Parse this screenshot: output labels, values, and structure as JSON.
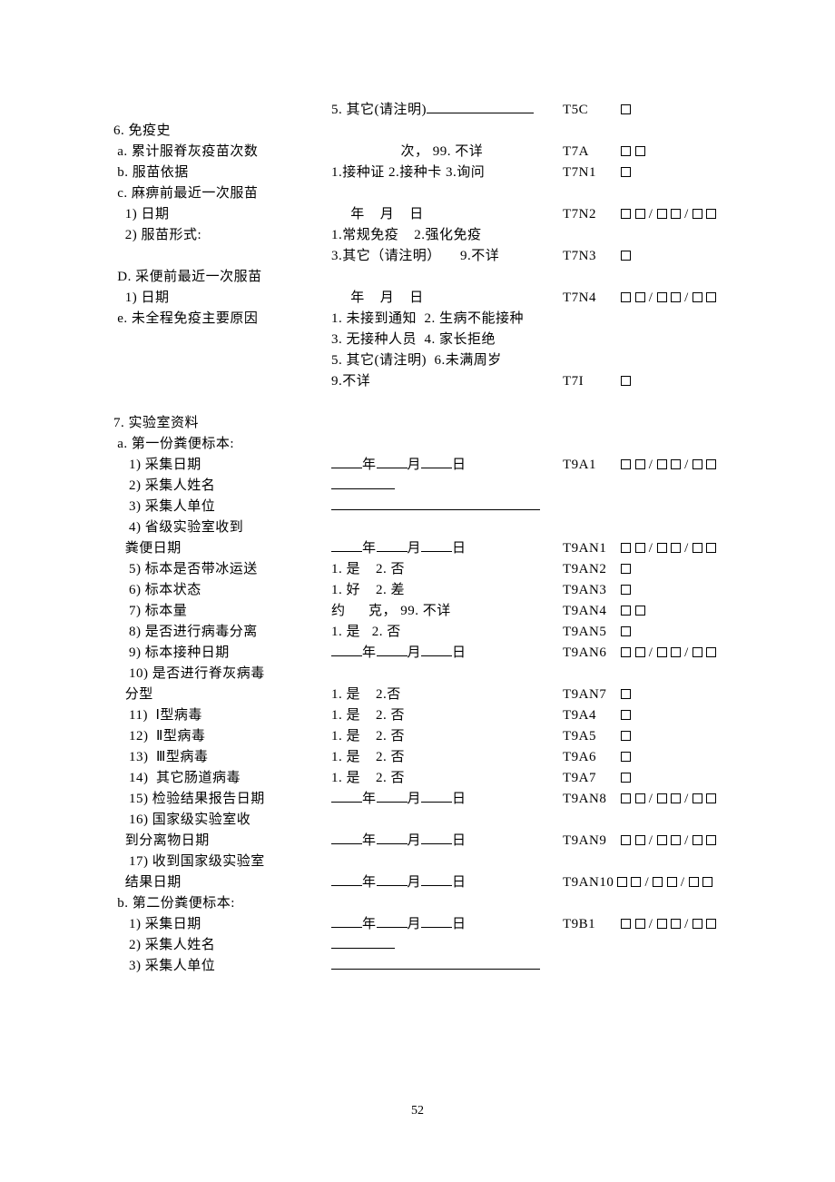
{
  "page_number": "52",
  "rows": [
    {
      "label": "",
      "mid": "5. 其它(请注明)",
      "mid_suffix": "uline-118",
      "code": "T5C",
      "boxes": "b"
    },
    {
      "label": "6. 免疫史",
      "mid": "",
      "code": "",
      "boxes": ""
    },
    {
      "label": " a. 累计服脊灰疫苗次数",
      "mid": "                  次， 99. 不详",
      "code": "T7A",
      "boxes": "bb"
    },
    {
      "label": " b. 服苗依据",
      "mid": "1.接种证 2.接种卡 3.询问",
      "code": "T7N1",
      "boxes": "b"
    },
    {
      "label": " c. 麻痹前最近一次服苗",
      "mid": "",
      "code": "",
      "boxes": ""
    },
    {
      "label": "   1) 日期",
      "mid": "     年    月    日",
      "code": "T7N2",
      "boxes": "bb/bb/bb"
    },
    {
      "label": "   2) 服苗形式:",
      "mid": "1.常规免疫    2.强化免疫",
      "code": "",
      "boxes": ""
    },
    {
      "label": "",
      "mid": "3.其它（请注明）     9.不详",
      "code": "T7N3",
      "boxes": "b"
    },
    {
      "label": " D. 采便前最近一次服苗",
      "mid": "",
      "code": "",
      "boxes": ""
    },
    {
      "label": "   1) 日期",
      "mid": "     年    月    日",
      "code": "T7N4",
      "boxes": "bb/bb/bb"
    },
    {
      "label": " e. 未全程免疫主要原因",
      "mid": "1. 未接到通知  2. 生病不能接种",
      "code": "",
      "boxes": ""
    },
    {
      "label": "",
      "mid": "3. 无接种人员  4. 家长拒绝",
      "code": "",
      "boxes": ""
    },
    {
      "label": "",
      "mid": "5. 其它(请注明)  6.未满周岁",
      "code": "",
      "boxes": ""
    },
    {
      "label": "",
      "mid": "9.不详",
      "code": "T7I",
      "boxes": "b"
    },
    {
      "gap": true
    },
    {
      "label": "7. 实验室资料",
      "mid": "",
      "code": "",
      "boxes": ""
    },
    {
      "label": " a. 第一份粪便标本:",
      "mid": "",
      "code": "",
      "boxes": ""
    },
    {
      "label": "    1) 采集日期",
      "mid_date": true,
      "code": "T9A1",
      "boxes": "bb/bb/bb"
    },
    {
      "label": "    2) 采集人姓名",
      "mid_uline": "uline-med",
      "code": "",
      "boxes": ""
    },
    {
      "label": "    3) 采集人单位",
      "mid_uline": "uline-long",
      "code": "",
      "boxes": ""
    },
    {
      "label": "    4) 省级实验室收到",
      "mid": "",
      "code": "",
      "boxes": ""
    },
    {
      "label": "   粪便日期",
      "mid_date": true,
      "code": "T9AN1",
      "boxes": "bb/bb/bb"
    },
    {
      "label": "    5) 标本是否带冰运送",
      "mid": "1. 是    2. 否",
      "code": "T9AN2",
      "boxes": "b"
    },
    {
      "label": "    6) 标本状态",
      "mid": "1. 好    2. 差",
      "code": "T9AN3",
      "boxes": "b"
    },
    {
      "label": "    7) 标本量",
      "mid": "约      克， 99. 不详",
      "code": "T9AN4",
      "boxes": "bb"
    },
    {
      "label": "    8) 是否进行病毒分离",
      "mid": "1. 是   2. 否",
      "code": "T9AN5",
      "boxes": "b"
    },
    {
      "label": "    9) 标本接种日期",
      "mid_date": true,
      "code": "T9AN6",
      "boxes": "bb/bb/bb"
    },
    {
      "label": "    10) 是否进行脊灰病毒",
      "mid": "",
      "code": "",
      "boxes": ""
    },
    {
      "label": "   分型",
      "mid": "1. 是    2.否",
      "code": "T9AN7",
      "boxes": "b"
    },
    {
      "label": "    11)  Ⅰ型病毒",
      "mid": "1. 是    2. 否",
      "code": "T9A4",
      "boxes": "b"
    },
    {
      "label": "    12)  Ⅱ型病毒",
      "mid": "1. 是    2. 否",
      "code": "T9A5",
      "boxes": "b"
    },
    {
      "label": "    13)  Ⅲ型病毒",
      "mid": "1. 是    2. 否",
      "code": "T9A6",
      "boxes": "b"
    },
    {
      "label": "    14)  其它肠道病毒",
      "mid": "1. 是    2. 否",
      "code": "T9A7",
      "boxes": "b"
    },
    {
      "label": "    15) 检验结果报告日期",
      "mid_date": true,
      "code": "T9AN8",
      "boxes": "bb/bb/bb"
    },
    {
      "label": "    16) 国家级实验室收",
      "mid": "",
      "code": "",
      "boxes": ""
    },
    {
      "label": "   到分离物日期",
      "mid_date": true,
      "code": "T9AN9",
      "boxes": "bb/bb/bb"
    },
    {
      "label": "    17) 收到国家级实验室",
      "mid": "",
      "code": "",
      "boxes": ""
    },
    {
      "label": "   结果日期",
      "mid_date": true,
      "code": "T9AN10",
      "boxes": "bb/bb/bb",
      "tight": true
    },
    {
      "label": " b. 第二份粪便标本:",
      "mid": "",
      "code": "",
      "boxes": ""
    },
    {
      "label": "    1) 采集日期",
      "mid_date": true,
      "code": "T9B1",
      "boxes": "bb/bb/bb"
    },
    {
      "label": "    2) 采集人姓名",
      "mid_uline": "uline-med",
      "code": "",
      "boxes": ""
    },
    {
      "label": "    3) 采集人单位",
      "mid_uline": "uline-long",
      "code": "",
      "boxes": ""
    }
  ],
  "date_parts": {
    "y": "年",
    "m": "月",
    "d": "日"
  }
}
